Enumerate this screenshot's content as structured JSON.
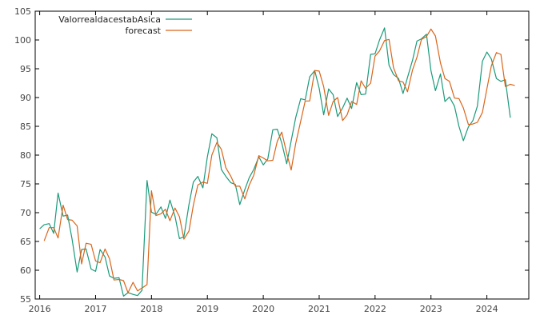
{
  "chart_data": {
    "type": "line",
    "title": "",
    "xlabel": "",
    "ylabel": "",
    "xlim": [
      2015.92,
      2024.75
    ],
    "ylim": [
      55,
      105
    ],
    "x_ticks": [
      2016,
      2017,
      2018,
      2019,
      2020,
      2021,
      2022,
      2023,
      2024
    ],
    "y_ticks": [
      55,
      60,
      65,
      70,
      75,
      80,
      85,
      90,
      95,
      100,
      105
    ],
    "grid": false,
    "legend_position": "top-left",
    "series": [
      {
        "name": "ValorrealdacestabAsica",
        "color": "#1a9a7a",
        "points": [
          [
            2016.0,
            67.2
          ],
          [
            2016.08,
            67.9
          ],
          [
            2016.17,
            68.1
          ],
          [
            2016.25,
            66.4
          ],
          [
            2016.33,
            73.4
          ],
          [
            2016.42,
            69.4
          ],
          [
            2016.5,
            69.6
          ],
          [
            2016.58,
            65.4
          ],
          [
            2016.67,
            59.7
          ],
          [
            2016.75,
            63.6
          ],
          [
            2016.83,
            63.7
          ],
          [
            2016.92,
            60.2
          ],
          [
            2017.0,
            59.8
          ],
          [
            2017.08,
            63.6
          ],
          [
            2017.17,
            62.3
          ],
          [
            2017.25,
            59.0
          ],
          [
            2017.33,
            58.6
          ],
          [
            2017.42,
            58.7
          ],
          [
            2017.5,
            55.5
          ],
          [
            2017.58,
            56.1
          ],
          [
            2017.67,
            55.8
          ],
          [
            2017.75,
            55.6
          ],
          [
            2017.83,
            56.5
          ],
          [
            2017.92,
            75.6
          ],
          [
            2018.0,
            70.1
          ],
          [
            2018.08,
            69.7
          ],
          [
            2018.17,
            71.0
          ],
          [
            2018.25,
            69.0
          ],
          [
            2018.33,
            72.2
          ],
          [
            2018.42,
            69.4
          ],
          [
            2018.5,
            65.5
          ],
          [
            2018.58,
            65.8
          ],
          [
            2018.67,
            71.4
          ],
          [
            2018.75,
            75.3
          ],
          [
            2018.83,
            76.3
          ],
          [
            2018.92,
            74.3
          ],
          [
            2019.0,
            79.7
          ],
          [
            2019.08,
            83.7
          ],
          [
            2019.17,
            83.0
          ],
          [
            2019.25,
            77.5
          ],
          [
            2019.33,
            76.3
          ],
          [
            2019.42,
            75.2
          ],
          [
            2019.5,
            74.9
          ],
          [
            2019.58,
            71.4
          ],
          [
            2019.67,
            74.0
          ],
          [
            2019.75,
            76.1
          ],
          [
            2019.83,
            77.5
          ],
          [
            2019.92,
            79.7
          ],
          [
            2020.0,
            78.3
          ],
          [
            2020.08,
            79.3
          ],
          [
            2020.17,
            84.4
          ],
          [
            2020.25,
            84.5
          ],
          [
            2020.33,
            82.1
          ],
          [
            2020.42,
            78.5
          ],
          [
            2020.5,
            82.5
          ],
          [
            2020.58,
            86.5
          ],
          [
            2020.67,
            89.8
          ],
          [
            2020.75,
            89.6
          ],
          [
            2020.83,
            93.6
          ],
          [
            2020.92,
            94.7
          ],
          [
            2021.0,
            91.6
          ],
          [
            2021.08,
            87.0
          ],
          [
            2021.17,
            91.5
          ],
          [
            2021.25,
            90.5
          ],
          [
            2021.33,
            86.7
          ],
          [
            2021.42,
            88.2
          ],
          [
            2021.5,
            89.9
          ],
          [
            2021.58,
            88.1
          ],
          [
            2021.67,
            92.6
          ],
          [
            2021.75,
            90.5
          ],
          [
            2021.83,
            90.6
          ],
          [
            2021.92,
            97.5
          ],
          [
            2022.0,
            97.6
          ],
          [
            2022.08,
            100.0
          ],
          [
            2022.17,
            102.1
          ],
          [
            2022.25,
            95.6
          ],
          [
            2022.33,
            94.0
          ],
          [
            2022.42,
            93.3
          ],
          [
            2022.5,
            90.7
          ],
          [
            2022.58,
            93.5
          ],
          [
            2022.67,
            96.5
          ],
          [
            2022.75,
            99.8
          ],
          [
            2022.83,
            100.2
          ],
          [
            2022.92,
            101.0
          ],
          [
            2023.0,
            94.7
          ],
          [
            2023.08,
            91.2
          ],
          [
            2023.17,
            94.1
          ],
          [
            2023.25,
            89.3
          ],
          [
            2023.33,
            90.1
          ],
          [
            2023.42,
            88.5
          ],
          [
            2023.5,
            85.0
          ],
          [
            2023.58,
            82.5
          ],
          [
            2023.67,
            84.9
          ],
          [
            2023.75,
            86.0
          ],
          [
            2023.83,
            88.5
          ],
          [
            2023.92,
            96.3
          ],
          [
            2024.0,
            97.9
          ],
          [
            2024.08,
            96.7
          ],
          [
            2024.17,
            93.3
          ],
          [
            2024.25,
            92.8
          ],
          [
            2024.33,
            93.1
          ],
          [
            2024.42,
            86.5
          ]
        ]
      },
      {
        "name": "forecast",
        "color": "#d9651a",
        "points": [
          [
            2016.08,
            65.1
          ],
          [
            2016.17,
            67.4
          ],
          [
            2016.25,
            67.4
          ],
          [
            2016.33,
            65.6
          ],
          [
            2016.42,
            71.3
          ],
          [
            2016.5,
            68.8
          ],
          [
            2016.58,
            68.7
          ],
          [
            2016.67,
            67.7
          ],
          [
            2016.75,
            61.1
          ],
          [
            2016.83,
            64.7
          ],
          [
            2016.92,
            64.5
          ],
          [
            2017.0,
            61.6
          ],
          [
            2017.08,
            61.3
          ],
          [
            2017.17,
            63.7
          ],
          [
            2017.25,
            62.0
          ],
          [
            2017.33,
            58.3
          ],
          [
            2017.42,
            58.4
          ],
          [
            2017.5,
            58.2
          ],
          [
            2017.58,
            56.1
          ],
          [
            2017.67,
            57.9
          ],
          [
            2017.75,
            56.4
          ],
          [
            2017.83,
            56.9
          ],
          [
            2017.92,
            57.5
          ],
          [
            2018.0,
            73.8
          ],
          [
            2018.08,
            69.5
          ],
          [
            2018.17,
            69.8
          ],
          [
            2018.25,
            70.6
          ],
          [
            2018.33,
            68.6
          ],
          [
            2018.42,
            70.8
          ],
          [
            2018.5,
            69.3
          ],
          [
            2018.58,
            65.4
          ],
          [
            2018.67,
            66.8
          ],
          [
            2018.75,
            71.3
          ],
          [
            2018.83,
            74.8
          ],
          [
            2018.92,
            75.3
          ],
          [
            2019.0,
            75.1
          ],
          [
            2019.08,
            80.0
          ],
          [
            2019.17,
            82.2
          ],
          [
            2019.25,
            81.0
          ],
          [
            2019.33,
            77.8
          ],
          [
            2019.42,
            76.3
          ],
          [
            2019.5,
            74.6
          ],
          [
            2019.58,
            74.6
          ],
          [
            2019.67,
            72.4
          ],
          [
            2019.75,
            74.8
          ],
          [
            2019.83,
            76.5
          ],
          [
            2019.92,
            79.9
          ],
          [
            2020.0,
            79.5
          ],
          [
            2020.08,
            79.0
          ],
          [
            2020.17,
            79.1
          ],
          [
            2020.25,
            82.4
          ],
          [
            2020.33,
            84.0
          ],
          [
            2020.42,
            80.3
          ],
          [
            2020.5,
            77.4
          ],
          [
            2020.58,
            82.0
          ],
          [
            2020.67,
            85.9
          ],
          [
            2020.75,
            89.4
          ],
          [
            2020.83,
            89.4
          ],
          [
            2020.92,
            94.7
          ],
          [
            2021.0,
            94.6
          ],
          [
            2021.08,
            91.9
          ],
          [
            2021.17,
            86.9
          ],
          [
            2021.25,
            89.3
          ],
          [
            2021.33,
            90.0
          ],
          [
            2021.42,
            86.0
          ],
          [
            2021.5,
            87.0
          ],
          [
            2021.58,
            89.3
          ],
          [
            2021.67,
            88.8
          ],
          [
            2021.75,
            92.9
          ],
          [
            2021.83,
            91.6
          ],
          [
            2021.92,
            92.5
          ],
          [
            2022.0,
            97.2
          ],
          [
            2022.08,
            98.1
          ],
          [
            2022.17,
            99.9
          ],
          [
            2022.25,
            100.1
          ],
          [
            2022.33,
            95.2
          ],
          [
            2022.42,
            92.9
          ],
          [
            2022.5,
            92.7
          ],
          [
            2022.58,
            91.0
          ],
          [
            2022.67,
            94.8
          ],
          [
            2022.75,
            97.0
          ],
          [
            2022.83,
            100.1
          ],
          [
            2022.92,
            100.6
          ],
          [
            2023.0,
            101.9
          ],
          [
            2023.08,
            100.7
          ],
          [
            2023.17,
            96.0
          ],
          [
            2023.25,
            93.3
          ],
          [
            2023.33,
            92.8
          ],
          [
            2023.42,
            89.9
          ],
          [
            2023.5,
            89.8
          ],
          [
            2023.58,
            88.2
          ],
          [
            2023.67,
            85.3
          ],
          [
            2023.75,
            85.4
          ],
          [
            2023.83,
            85.7
          ],
          [
            2023.92,
            87.4
          ],
          [
            2024.0,
            91.5
          ],
          [
            2024.08,
            95.5
          ],
          [
            2024.17,
            97.8
          ],
          [
            2024.25,
            97.5
          ],
          [
            2024.33,
            91.9
          ],
          [
            2024.42,
            92.3
          ],
          [
            2024.5,
            92.1
          ]
        ]
      }
    ]
  }
}
